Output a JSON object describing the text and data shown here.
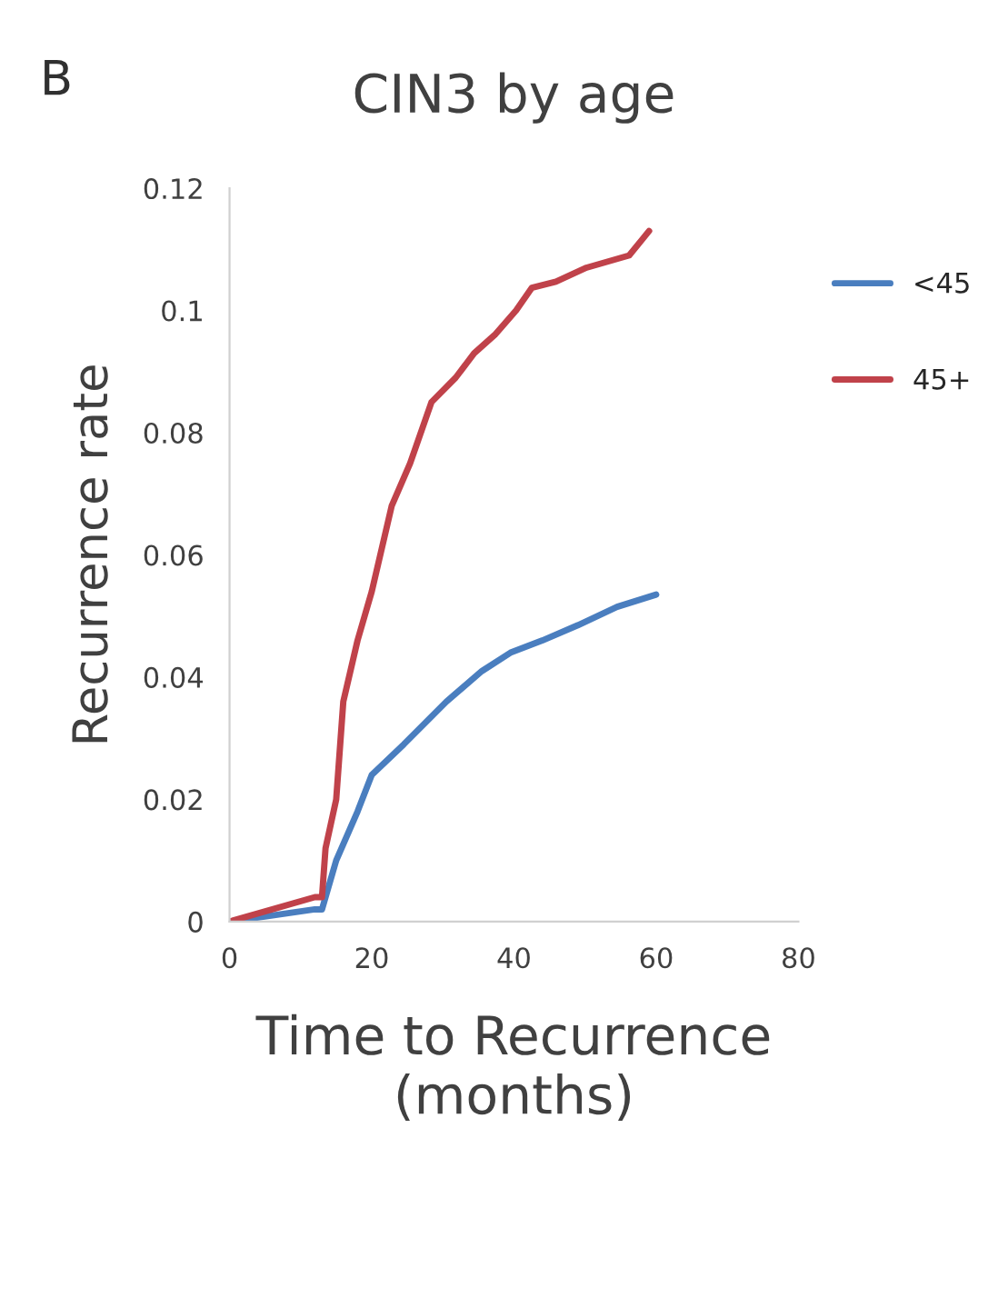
{
  "chart_data": {
    "type": "line",
    "title": "CIN3 by age",
    "xlabel": "Time to Recurrence\n(months)",
    "ylabel": "Recurrence rate",
    "annotations": [
      "B"
    ],
    "xlim": [
      0,
      80
    ],
    "xticks": [
      0,
      20,
      40,
      60,
      80
    ],
    "ylim": [
      0,
      0.12
    ],
    "yticks": [
      0,
      0.02,
      0.04,
      0.06,
      0.08,
      {
        "value": 0.1,
        "label": "0.1"
      },
      0.12
    ],
    "grid": false,
    "legend": "right",
    "marker": "none",
    "line_style": "solid",
    "series": [
      {
        "name": "<45",
        "color": "#4a7ebf",
        "x": [
          0,
          12,
          13,
          15,
          18,
          20,
          24.5,
          30.5,
          35.5,
          39.5,
          44,
          49,
          54.5,
          60
        ],
        "values": [
          0,
          0.002,
          0.002,
          0.01,
          0.018,
          0.024,
          0.029,
          0.036,
          0.041,
          0.044,
          0.046,
          0.0485,
          0.0515,
          0.0535
        ]
      },
      {
        "name": "45+",
        "color": "#c0424a",
        "x": [
          0,
          12,
          13,
          13.5,
          15,
          16,
          18,
          20,
          22.8,
          25.4,
          28.4,
          31.8,
          34.4,
          37.3,
          40.3,
          42.5,
          45.9,
          50.2,
          56.2,
          58.3,
          59
        ],
        "values": [
          0,
          0.004,
          0.004,
          0.012,
          0.02,
          0.036,
          0.046,
          0.054,
          0.068,
          0.075,
          0.085,
          0.089,
          0.093,
          0.096,
          0.1,
          0.1037,
          0.1047,
          0.107,
          0.109,
          0.112,
          0.113
        ]
      }
    ]
  }
}
